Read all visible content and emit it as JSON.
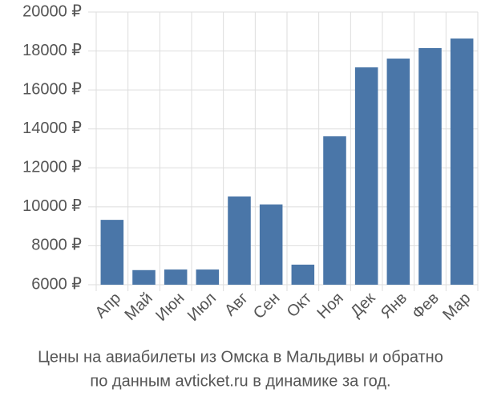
{
  "chart_data": {
    "type": "bar",
    "title": "Цены на авиабилеты из Омска в Мальдивы и обратно",
    "subtitle": "по данным avticket.ru в динамике за год.",
    "categories": [
      "Апр",
      "Май",
      "Июн",
      "Июл",
      "Авг",
      "Сен",
      "Окт",
      "Ноя",
      "Дек",
      "Янв",
      "Фев",
      "Мар"
    ],
    "values": [
      9330,
      6750,
      6780,
      6780,
      10530,
      10120,
      7030,
      13620,
      17160,
      17610,
      18150,
      18640
    ],
    "color": "#4a76a8",
    "ylim": [
      6000,
      20000
    ],
    "yticks": [
      {
        "value": 6000,
        "label": "6000 ₽"
      },
      {
        "value": 8000,
        "label": "8000 ₽"
      },
      {
        "value": 10000,
        "label": "10000 ₽"
      },
      {
        "value": 12000,
        "label": "12000 ₽"
      },
      {
        "value": 14000,
        "label": "14000 ₽"
      },
      {
        "value": 16000,
        "label": "16000 ₽"
      },
      {
        "value": 18000,
        "label": "18000 ₽"
      },
      {
        "value": 20000,
        "label": "20000 ₽"
      }
    ],
    "grid": true
  }
}
